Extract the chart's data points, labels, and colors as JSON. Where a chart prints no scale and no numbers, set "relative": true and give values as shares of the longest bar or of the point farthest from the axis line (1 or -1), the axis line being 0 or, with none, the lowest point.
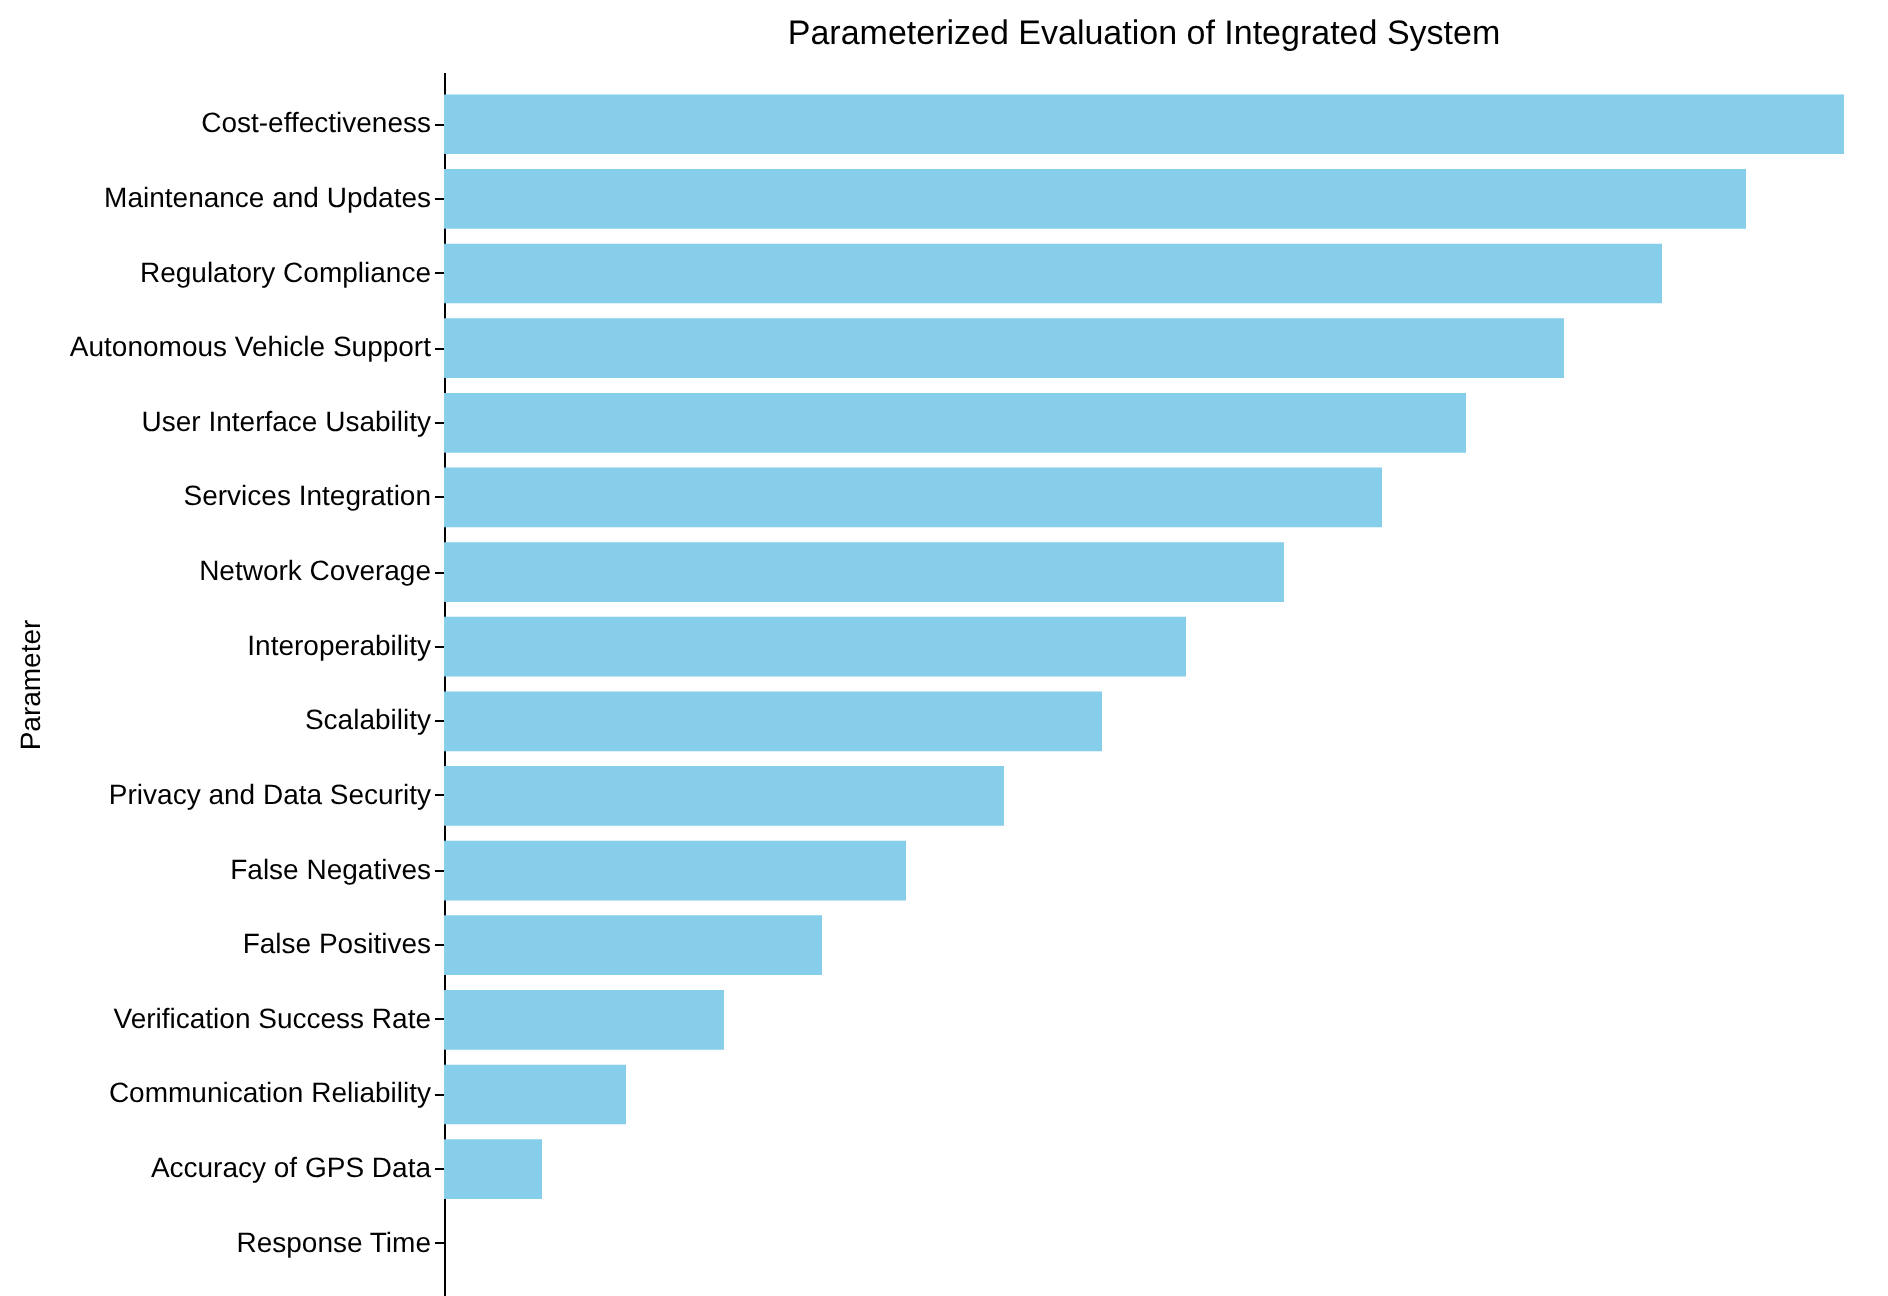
{
  "chart_data": {
    "type": "bar",
    "orientation": "horizontal",
    "relative": true,
    "title": "Parameterized Evaluation of Integrated System",
    "ylabel": "Parameter",
    "categories": [
      "Cost-effectiveness",
      "Maintenance and Updates",
      "Regulatory Compliance",
      "Autonomous Vehicle Support",
      "User Interface Usability",
      "Services Integration",
      "Network Coverage",
      "Interoperability",
      "Scalability",
      "Privacy and Data Security",
      "False Negatives",
      "False Positives",
      "Verification Success Rate",
      "Communication Reliability",
      "Accuracy of GPS Data",
      "Response Time"
    ],
    "values": [
      1,
      0.93,
      0.87,
      0.8,
      0.73,
      0.67,
      0.6,
      0.53,
      0.47,
      0.4,
      0.33,
      0.27,
      0.2,
      0.13,
      0.07,
      0
    ],
    "color": "#87ceeb"
  }
}
